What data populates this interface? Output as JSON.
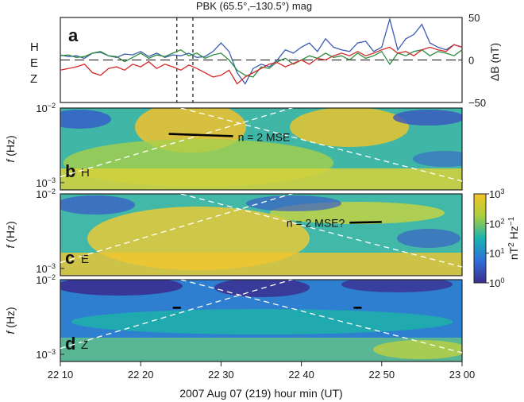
{
  "figure": {
    "title": "PBK (65.5°,–130.5°) mag",
    "xlabel": "2007 Aug 07 (219)  hour min (UT)",
    "x_ticks": [
      "22 10",
      "22 20",
      "22 30",
      "22 40",
      "22 50",
      "23 00"
    ]
  },
  "chart_data": [
    {
      "type": "line",
      "panel": "a",
      "title": "PBK (65.5°,–130.5°) mag",
      "ylabel": "ΔB (nT)",
      "ylim": [
        -50,
        50
      ],
      "yticks": [
        "50",
        "0",
        "−50"
      ],
      "x_range_minutes_after_2210": [
        0,
        50
      ],
      "x": [
        0,
        1,
        2,
        3,
        4,
        5,
        6,
        7,
        8,
        9,
        10,
        11,
        12,
        13,
        14,
        15,
        16,
        17,
        18,
        19,
        20,
        21,
        22,
        23,
        24,
        25,
        26,
        27,
        28,
        29,
        30,
        31,
        32,
        33,
        34,
        35,
        36,
        37,
        38,
        39,
        40,
        41,
        42,
        43,
        44,
        45,
        46,
        47,
        48,
        49,
        50
      ],
      "series": [
        {
          "name": "H",
          "color": "#3a5bb0",
          "values": [
            6,
            4,
            5,
            2,
            8,
            9,
            5,
            3,
            7,
            6,
            10,
            4,
            8,
            3,
            6,
            5,
            8,
            3,
            4,
            10,
            20,
            10,
            -15,
            -28,
            -10,
            -5,
            -8,
            0,
            12,
            8,
            15,
            20,
            10,
            25,
            15,
            12,
            10,
            20,
            22,
            10,
            15,
            48,
            12,
            25,
            30,
            42,
            20,
            15,
            12,
            18,
            15
          ]
        },
        {
          "name": "E",
          "color": "#2e8b3e",
          "values": [
            5,
            6,
            3,
            4,
            8,
            10,
            5,
            4,
            -2,
            3,
            8,
            2,
            6,
            4,
            8,
            12,
            5,
            8,
            2,
            6,
            8,
            0,
            -12,
            -18,
            -20,
            -8,
            -10,
            -2,
            2,
            -5,
            0,
            5,
            2,
            8,
            3,
            5,
            0,
            8,
            2,
            5,
            10,
            -5,
            8,
            5,
            10,
            12,
            5,
            10,
            8,
            5,
            12
          ]
        },
        {
          "name": "Z",
          "color": "#d42a2a",
          "values": [
            -12,
            -10,
            -8,
            -5,
            -15,
            -18,
            -10,
            -8,
            -12,
            -5,
            -8,
            -2,
            -10,
            -5,
            -8,
            -12,
            -6,
            -10,
            -15,
            -20,
            -18,
            -12,
            -28,
            -20,
            -15,
            -10,
            -5,
            -3,
            -8,
            -4,
            0,
            -5,
            2,
            0,
            5,
            8,
            5,
            10,
            5,
            8,
            12,
            15,
            8,
            10,
            5,
            12,
            15,
            12,
            10,
            18,
            15
          ]
        }
      ],
      "dashed_vertical_lines_minutes_after_2210": [
        14.5,
        16.5
      ],
      "zero_reference_line": true
    },
    {
      "type": "heatmap",
      "panel": "b",
      "component": "H",
      "ylabel": "f (Hz)",
      "ylim_hz": [
        0.0008,
        0.01
      ],
      "yticks": [
        "10−2",
        "10−3"
      ],
      "colorscale_range_nT2_per_Hz": [
        1,
        1000
      ],
      "annotations": [
        {
          "text": "n = 2 MSE",
          "segment_minutes": [
            13.5,
            21.5
          ],
          "freq_hz": [
            0.0045,
            0.0042
          ]
        }
      ]
    },
    {
      "type": "heatmap",
      "panel": "c",
      "component": "E",
      "ylabel": "f (Hz)",
      "ylim_hz": [
        0.0008,
        0.01
      ],
      "yticks": [
        "10−2",
        "10−3"
      ],
      "annotations": [
        {
          "text": "n = 2 MSE?",
          "segment_minutes": [
            36,
            40
          ],
          "freq_hz": [
            0.0041,
            0.0042
          ]
        }
      ]
    },
    {
      "type": "heatmap",
      "panel": "d",
      "component": "Z",
      "ylabel": "f (Hz)",
      "ylim_hz": [
        0.0008,
        0.01
      ],
      "yticks": [
        "10−2",
        "10−3"
      ],
      "annotations": [
        {
          "text": "",
          "segment_minutes": [
            14,
            15
          ],
          "freq_hz": [
            0.0042,
            0.0042
          ]
        },
        {
          "text": "",
          "segment_minutes": [
            36.5,
            37.5
          ],
          "freq_hz": [
            0.0042,
            0.0042
          ]
        }
      ]
    }
  ],
  "colorbar": {
    "label": "nT2 Hz−1",
    "ticks": [
      "103",
      "102",
      "101",
      "100"
    ],
    "range_log10": [
      0,
      3
    ]
  }
}
